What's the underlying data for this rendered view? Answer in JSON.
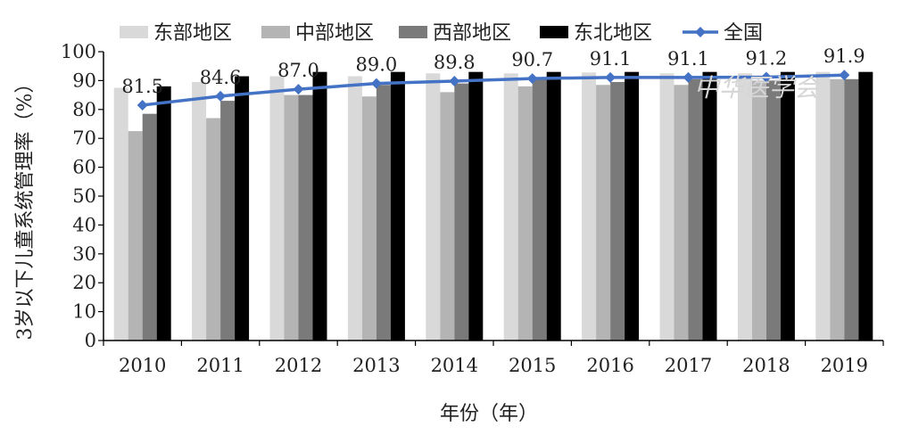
{
  "chart_data": {
    "type": "bar",
    "title": "",
    "xlabel": "年份（年）",
    "ylabel": "3岁以下儿童系统管理率（%）",
    "ylim": [
      0,
      100
    ],
    "yticks": [
      0,
      10,
      20,
      30,
      40,
      50,
      60,
      70,
      80,
      90,
      100
    ],
    "categories": [
      "2010",
      "2011",
      "2012",
      "2013",
      "2014",
      "2015",
      "2016",
      "2017",
      "2018",
      "2019"
    ],
    "legend_position": "top",
    "series": [
      {
        "name": "东部地区",
        "kind": "bar",
        "color": "#d9d9d9",
        "values": [
          87.5,
          89.5,
          91.5,
          91.5,
          92.5,
          92.5,
          92.8,
          92.5,
          92.5,
          93.0
        ]
      },
      {
        "name": "中部地区",
        "kind": "bar",
        "color": "#b4b4b4",
        "values": [
          72.5,
          77.0,
          85.0,
          84.5,
          86.0,
          88.0,
          88.5,
          88.5,
          90.0,
          90.5
        ]
      },
      {
        "name": "西部地区",
        "kind": "bar",
        "color": "#7a7a7a",
        "values": [
          78.5,
          83.0,
          85.0,
          88.5,
          89.0,
          90.5,
          89.5,
          90.5,
          90.0,
          90.5
        ]
      },
      {
        "name": "东北地区",
        "kind": "bar",
        "color": "#000000",
        "values": [
          88.0,
          91.5,
          93.0,
          93.0,
          93.0,
          93.0,
          93.0,
          93.0,
          93.0,
          93.0
        ]
      },
      {
        "name": "全国",
        "kind": "line",
        "color": "#4472c4",
        "values": [
          81.5,
          84.6,
          87.0,
          89.0,
          89.8,
          90.7,
          91.1,
          91.1,
          91.2,
          91.9
        ],
        "labels": [
          "81.5",
          "84.6",
          "87.0",
          "89.0",
          "89.8",
          "90.7",
          "91.1",
          "91.1",
          "91.2",
          "91.9"
        ]
      }
    ],
    "watermark": "中华医学会"
  }
}
